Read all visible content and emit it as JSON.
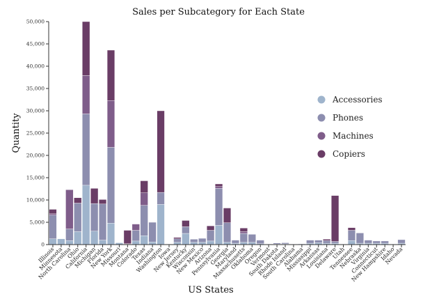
{
  "chart_data": {
    "type": "bar",
    "stacked": true,
    "title": "Sales per Subcategory for Each State",
    "xlabel": "US States",
    "ylabel": "Quantity",
    "ylim": [
      0,
      50000
    ],
    "y_ticks": [
      0,
      5000,
      10000,
      15000,
      20000,
      25000,
      30000,
      35000,
      40000,
      45000,
      50000
    ],
    "y_tick_labels": [
      "0",
      "5,000",
      "10,000",
      "15,000",
      "20,000",
      "25,000",
      "30,000",
      "35,000",
      "40,000",
      "45,000",
      "50,000"
    ],
    "legend_position": "right",
    "categories": [
      "Illinois",
      "Minnesota",
      "North Carolina",
      "Ohio",
      "California",
      "Michigan",
      "Florida",
      "New York",
      "Missouri",
      "Montana",
      "Colorado",
      "Texas",
      "Indiana",
      "Washington",
      "Iowa",
      "New Jersey",
      "Kentucky",
      "Wisconsin",
      "New Mexico",
      "Arizona",
      "Pennsylvania",
      "Georgia",
      "Maryland",
      "Massachusetts",
      "Oklahoma",
      "Oregon",
      "Vermont",
      "South Dakota",
      "Rhode Island",
      "South Carolina",
      "Alabama",
      "Mississippi",
      "Arkansas",
      "Louisiana",
      "Delaware",
      "Utah",
      "Tennessee",
      "Nebraska",
      "Virginia",
      "Connecticut",
      "New Hampshire",
      "Idaho",
      "Nevada"
    ],
    "series": [
      {
        "name": "Accessories",
        "color": "#9fb4cc",
        "values": [
          1300,
          1300,
          900,
          2900,
          13300,
          3000,
          1000,
          4800,
          400,
          100,
          800,
          2000,
          600,
          9000,
          100,
          500,
          2500,
          500,
          500,
          800,
          4300,
          500,
          300,
          500,
          500,
          200,
          100,
          100,
          150,
          100,
          150,
          300,
          400,
          300,
          300,
          100,
          900,
          300,
          300,
          300,
          300,
          100,
          300
        ]
      },
      {
        "name": "Phones",
        "color": "#8d8eaf",
        "values": [
          5300,
          0,
          2600,
          6400,
          16000,
          6200,
          8100,
          17000,
          0,
          0,
          2400,
          6800,
          4400,
          2700,
          0,
          800,
          1500,
          700,
          900,
          2400,
          8300,
          4400,
          700,
          2000,
          1800,
          800,
          0,
          250,
          250,
          0,
          0,
          700,
          600,
          600,
          400,
          0,
          2300,
          2300,
          700,
          500,
          500,
          0,
          800
        ]
      },
      {
        "name": "Machines",
        "color": "#7f5d8a",
        "values": [
          300,
          0,
          8800,
          0,
          8600,
          0,
          0,
          10500,
          0,
          100,
          1400,
          2800,
          0,
          0,
          0,
          0,
          0,
          0,
          0,
          0,
          400,
          0,
          0,
          400,
          0,
          0,
          0,
          0,
          0,
          0,
          0,
          0,
          0,
          0,
          0,
          0,
          0,
          0,
          0,
          0,
          0,
          0,
          0
        ]
      },
      {
        "name": "Copiers",
        "color": "#6a3d66",
        "values": [
          1000,
          0,
          0,
          1200,
          12100,
          3400,
          1000,
          11300,
          0,
          3000,
          0,
          2700,
          0,
          18300,
          0,
          300,
          1400,
          0,
          0,
          1000,
          600,
          3300,
          0,
          800,
          0,
          0,
          0,
          0,
          0,
          0,
          0,
          0,
          0,
          300,
          10300,
          0,
          600,
          0,
          0,
          0,
          0,
          0,
          0
        ]
      }
    ]
  }
}
